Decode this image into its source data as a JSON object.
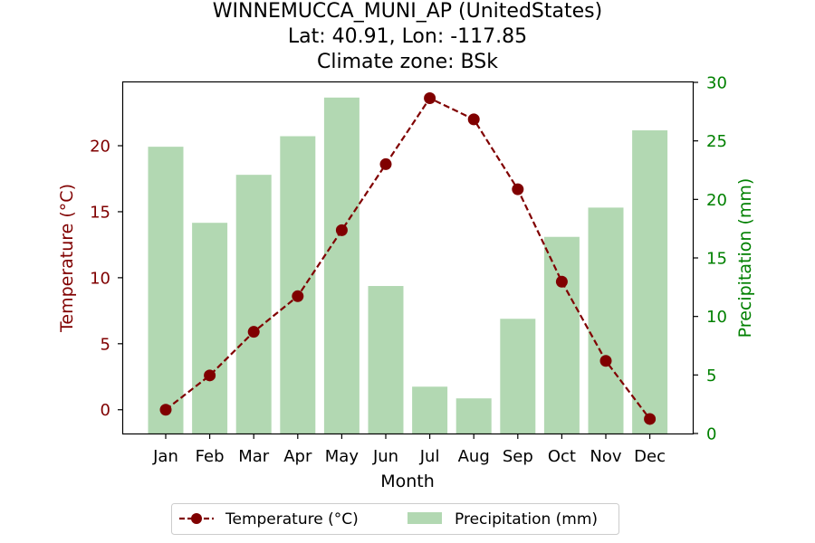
{
  "chart_data": {
    "type": "bar+line",
    "title_lines": [
      "WINNEMUCCA_MUNI_AP (UnitedStates)",
      "Lat: 40.91, Lon: -117.85",
      "Climate zone: BSk"
    ],
    "xlabel": "Month",
    "ylabel_left": "Temperature (°C)",
    "ylabel_right": "Precipitation (mm)",
    "categories": [
      "Jan",
      "Feb",
      "Mar",
      "Apr",
      "May",
      "Jun",
      "Jul",
      "Aug",
      "Sep",
      "Oct",
      "Nov",
      "Dec"
    ],
    "series": [
      {
        "name": "Temperature (°C)",
        "type": "line",
        "axis": "left",
        "color": "#800000",
        "values": [
          0.0,
          2.6,
          5.9,
          8.6,
          13.6,
          18.6,
          23.6,
          22.0,
          16.7,
          9.7,
          3.7,
          -0.7
        ]
      },
      {
        "name": "Precipitation (mm)",
        "type": "bar",
        "axis": "right",
        "color": "#b2d8b2",
        "values": [
          24.5,
          18.0,
          22.1,
          25.4,
          28.7,
          12.6,
          4.0,
          3.0,
          9.8,
          16.8,
          19.3,
          25.9
        ]
      }
    ],
    "ylim_left": [
      -1.8,
      24.8
    ],
    "yticks_left": [
      0,
      5,
      10,
      15,
      20
    ],
    "ylim_right": [
      0,
      30
    ],
    "yticks_right": [
      0,
      5,
      10,
      15,
      20,
      25,
      30
    ],
    "left_axis_color": "#800000",
    "right_axis_color": "#008000",
    "grid": false,
    "legend_position": "bottom-center"
  }
}
